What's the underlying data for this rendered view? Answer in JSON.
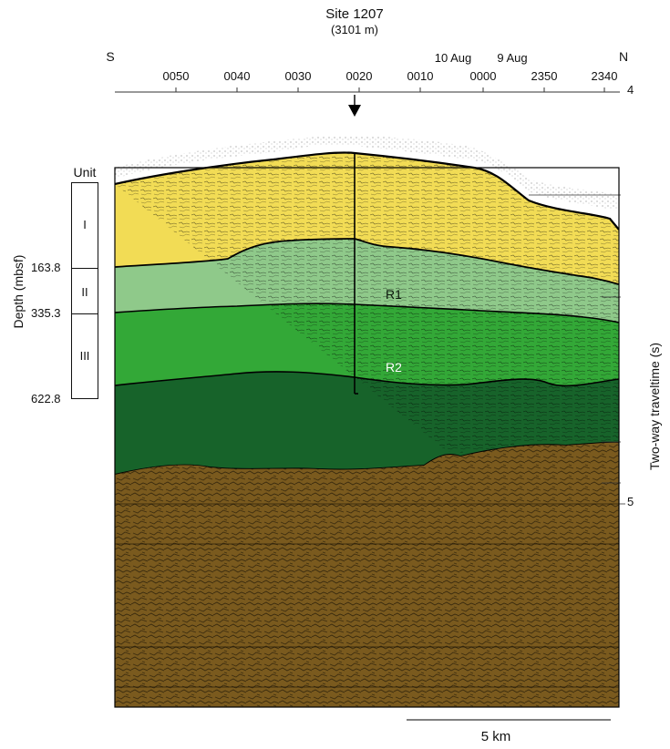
{
  "header": {
    "site": "Site 1207",
    "water_depth": "(3101 m)"
  },
  "directions": {
    "left": "S",
    "right": "N"
  },
  "time_labels": [
    "0050",
    "0040",
    "0030",
    "0020",
    "0010",
    "0000",
    "2350",
    "2340"
  ],
  "date_labels": [
    "10 Aug",
    "9 Aug"
  ],
  "twt_top_tick": "4",
  "twt_mid_tick": "5",
  "twt_axis_label": "Two-way traveltime (s)",
  "depth_axis_label": "Depth (mbsf)",
  "unit_heading": "Unit",
  "units": [
    "I",
    "II",
    "III"
  ],
  "unit_depths": [
    "163.8",
    "335.3",
    "622.8"
  ],
  "reflectors": [
    "R1",
    "R2"
  ],
  "scale_bar": "5 km",
  "colors": {
    "unit_I": "#f2dc55",
    "unit_II": "#8fc98a",
    "unit_III": "#33a837",
    "lower_green": "#17632a",
    "basement": "#7a5a1e",
    "r1_label": "#0d1a0d",
    "r2_label": "#ffffff"
  }
}
